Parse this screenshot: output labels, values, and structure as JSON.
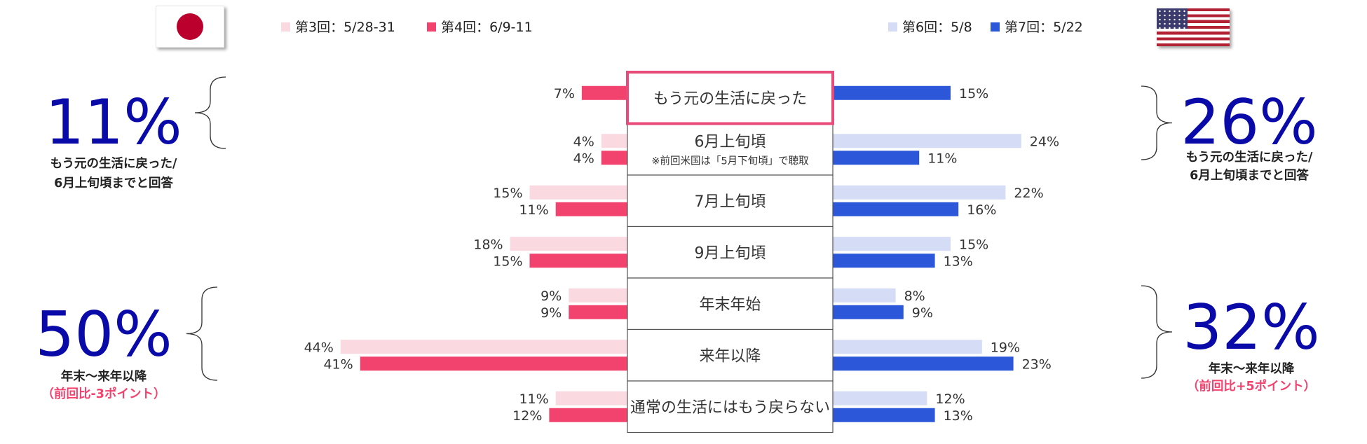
{
  "japan": {
    "flag_icon": "japan-flag-icon",
    "legend": [
      {
        "label": "第3回：5/28-31",
        "color": "#fbd9e1"
      },
      {
        "label": "第4回：6/9-11",
        "color": "#f2426e"
      }
    ],
    "summaries": [
      {
        "value": "11%",
        "lines": [
          "もう元の生活に戻った/",
          "6月上旬頃までと回答"
        ],
        "note": ""
      },
      {
        "value": "50%",
        "lines": [
          "年末～来年以降"
        ],
        "note": "（前回比-3ポイント）"
      }
    ]
  },
  "usa": {
    "flag_icon": "usa-flag-icon",
    "legend": [
      {
        "label": "第6回：5/8",
        "color": "#d5dcf5"
      },
      {
        "label": "第7回：5/22",
        "color": "#2b57d8"
      }
    ],
    "summaries": [
      {
        "value": "26%",
        "lines": [
          "もう元の生活に戻った/",
          "6月上旬頃までと回答"
        ],
        "note": ""
      },
      {
        "value": "32%",
        "lines": [
          "年末～来年以降"
        ],
        "note": "（前回比+5ポイント）"
      }
    ]
  },
  "colors": {
    "highlight_border": "#e84b7a",
    "note_text": "#f2426e",
    "summary_text": "#0a0aa8",
    "label_text": "#333333"
  },
  "chart_data": {
    "type": "bar",
    "layout": "butterfly",
    "categories": [
      {
        "label": "もう元の生活に戻った",
        "sub": "",
        "highlighted": true
      },
      {
        "label": "6月上旬頃",
        "sub": "※前回米国は「5月下旬頃」で聴取",
        "highlighted": false
      },
      {
        "label": "7月上旬頃",
        "sub": "",
        "highlighted": false
      },
      {
        "label": "9月上旬頃",
        "sub": "",
        "highlighted": false
      },
      {
        "label": "年末年始",
        "sub": "",
        "highlighted": false
      },
      {
        "label": "来年以降",
        "sub": "",
        "highlighted": false
      },
      {
        "label": "通常の生活にはもう戻らない",
        "sub": "",
        "highlighted": false
      }
    ],
    "left_series": [
      {
        "name": "第3回：5/28-31",
        "values": [
          null,
          4,
          15,
          18,
          9,
          44,
          11
        ]
      },
      {
        "name": "第4回：6/9-11",
        "values": [
          7,
          4,
          11,
          15,
          9,
          41,
          12
        ]
      }
    ],
    "right_series": [
      {
        "name": "第6回：5/8",
        "values": [
          null,
          24,
          22,
          15,
          8,
          19,
          12
        ]
      },
      {
        "name": "第7回：5/22",
        "values": [
          15,
          11,
          16,
          13,
          9,
          23,
          13
        ]
      }
    ],
    "value_suffix": "%"
  }
}
